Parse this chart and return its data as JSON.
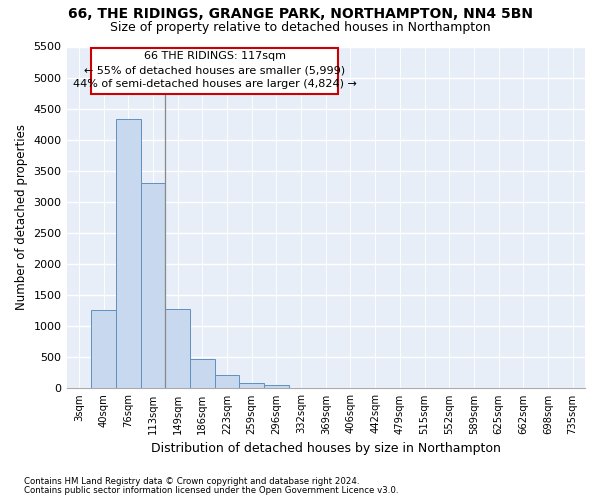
{
  "title_line1": "66, THE RIDINGS, GRANGE PARK, NORTHAMPTON, NN4 5BN",
  "title_line2": "Size of property relative to detached houses in Northampton",
  "xlabel": "Distribution of detached houses by size in Northampton",
  "ylabel": "Number of detached properties",
  "footnote1": "Contains HM Land Registry data © Crown copyright and database right 2024.",
  "footnote2": "Contains public sector information licensed under the Open Government Licence v3.0.",
  "annotation_line1": "66 THE RIDINGS: 117sqm",
  "annotation_line2": "← 55% of detached houses are smaller (5,999)",
  "annotation_line3": "44% of semi-detached houses are larger (4,824) →",
  "bar_labels": [
    "3sqm",
    "40sqm",
    "76sqm",
    "113sqm",
    "149sqm",
    "186sqm",
    "223sqm",
    "259sqm",
    "296sqm",
    "332sqm",
    "369sqm",
    "406sqm",
    "442sqm",
    "479sqm",
    "515sqm",
    "552sqm",
    "589sqm",
    "625sqm",
    "662sqm",
    "698sqm",
    "735sqm"
  ],
  "bar_values": [
    0,
    1260,
    4330,
    3300,
    1280,
    480,
    210,
    90,
    60,
    0,
    0,
    0,
    0,
    0,
    0,
    0,
    0,
    0,
    0,
    0,
    0
  ],
  "bar_color": "#c8d8ee",
  "bar_edge_color": "#6090c0",
  "ylim": [
    0,
    5500
  ],
  "yticks": [
    0,
    500,
    1000,
    1500,
    2000,
    2500,
    3000,
    3500,
    4000,
    4500,
    5000,
    5500
  ],
  "bg_color": "#ffffff",
  "plot_bg_color": "#e8eef8",
  "grid_color": "#ffffff",
  "annotation_box_facecolor": "#ffffff",
  "annotation_box_edgecolor": "#cc0000",
  "vline_color": "#888888",
  "title1_fontsize": 10,
  "title2_fontsize": 9
}
